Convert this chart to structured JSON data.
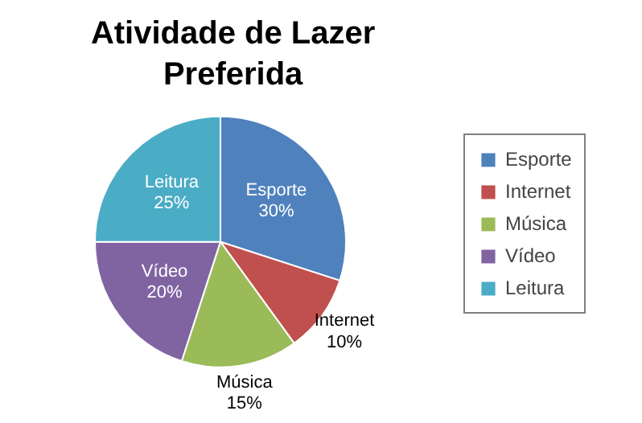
{
  "chart_data": {
    "type": "pie",
    "title": "Atividade de Lazer Preferida",
    "categories": [
      "Esporte",
      "Internet",
      "Música",
      "Vídeo",
      "Leitura"
    ],
    "values": [
      30,
      10,
      15,
      20,
      25
    ],
    "colors": [
      "#4f81bd",
      "#c0504d",
      "#9bbb59",
      "#8064a2",
      "#4bacc6"
    ],
    "value_labels": [
      "30%",
      "10%",
      "15%",
      "20%",
      "25%"
    ],
    "legend": "right"
  }
}
